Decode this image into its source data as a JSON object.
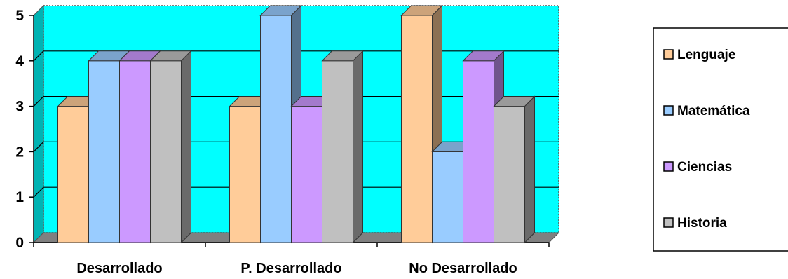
{
  "chart_data": {
    "type": "bar",
    "title": "",
    "xlabel": "",
    "ylabel": "",
    "categories": [
      "Desarrollado",
      "P. Desarrollado",
      "No Desarrollado"
    ],
    "series": [
      {
        "name": "Lenguaje",
        "values": [
          3,
          3,
          5
        ],
        "color": "#FFCC99"
      },
      {
        "name": "Matemática",
        "values": [
          4,
          5,
          2
        ],
        "color": "#99CCFF"
      },
      {
        "name": "Ciencias",
        "values": [
          4,
          3,
          4
        ],
        "color": "#CC99FF"
      },
      {
        "name": "Historia",
        "values": [
          4,
          4,
          3
        ],
        "color": "#C0C0C0"
      }
    ],
    "ylim": [
      0,
      5
    ],
    "yticks": [
      "0",
      "1",
      "2",
      "3",
      "4",
      "5"
    ],
    "grid": true,
    "legend_position": "right",
    "plot_background": "#00FFFF",
    "floor_color": "#808080"
  }
}
